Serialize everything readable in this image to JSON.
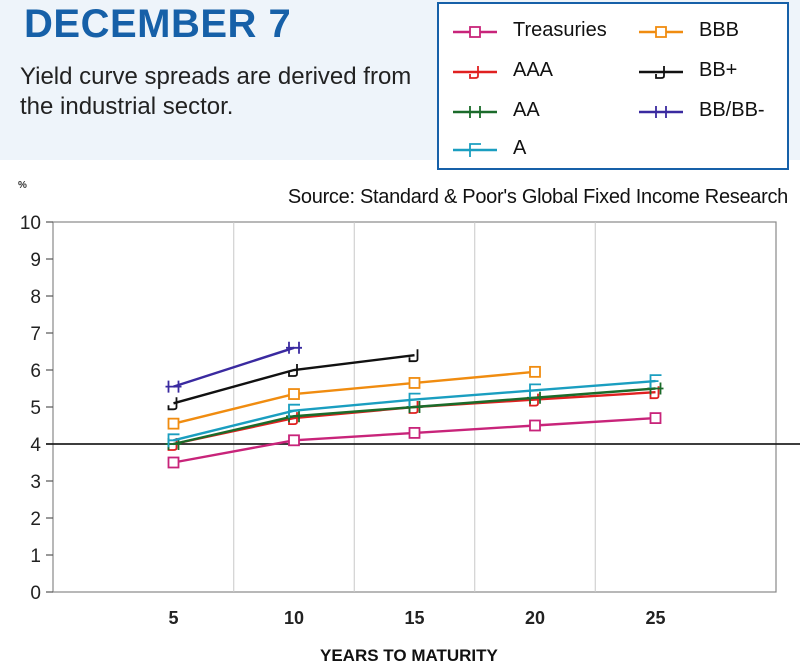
{
  "header": {
    "title": "DECEMBER 7",
    "subtitle": "Yield curve spreads are derived from the industrial sector."
  },
  "chart_data": {
    "type": "line",
    "source": "Source: Standard & Poor's Global Fixed Income Research",
    "ylabel": "%",
    "xlabel": "YEARS TO MATURITY",
    "x_ticks": [
      5,
      10,
      15,
      20,
      25
    ],
    "y_ticks": [
      0,
      1,
      2,
      3,
      4,
      5,
      6,
      7,
      8,
      9,
      10
    ],
    "xlim": [
      0,
      30
    ],
    "ylim": [
      0,
      10
    ],
    "reference_line_y": 4,
    "grid": true,
    "legend_position": "top-right",
    "series": [
      {
        "name": "Treasuries",
        "color": "#c8247a",
        "marker": "B",
        "x": [
          5,
          10,
          15,
          20,
          25
        ],
        "y": [
          3.5,
          4.1,
          4.3,
          4.5,
          4.7
        ]
      },
      {
        "name": "AAA",
        "color": "#e02020",
        "marker": "J",
        "x": [
          5,
          10,
          15,
          20,
          25
        ],
        "y": [
          4.0,
          4.7,
          5.0,
          5.2,
          5.4
        ]
      },
      {
        "name": "AA",
        "color": "#1b6b2a",
        "marker": "H",
        "x": [
          5,
          10,
          15,
          20,
          25
        ],
        "y": [
          4.0,
          4.75,
          5.0,
          5.25,
          5.5
        ]
      },
      {
        "name": "A",
        "color": "#1a9ec0",
        "marker": "F",
        "x": [
          5,
          10,
          15,
          20,
          25
        ],
        "y": [
          4.1,
          4.9,
          5.2,
          5.45,
          5.7
        ]
      },
      {
        "name": "BBB",
        "color": "#f08c10",
        "marker": "B",
        "x": [
          5,
          10,
          15,
          20
        ],
        "y": [
          4.55,
          5.35,
          5.65,
          5.95
        ]
      },
      {
        "name": "BB+",
        "color": "#111111",
        "marker": "J",
        "x": [
          5,
          10,
          15
        ],
        "y": [
          5.1,
          6.0,
          6.4
        ]
      },
      {
        "name": "BB/BB-",
        "color": "#3a2aa0",
        "marker": "H",
        "x": [
          5,
          10
        ],
        "y": [
          5.55,
          6.6
        ]
      }
    ]
  }
}
